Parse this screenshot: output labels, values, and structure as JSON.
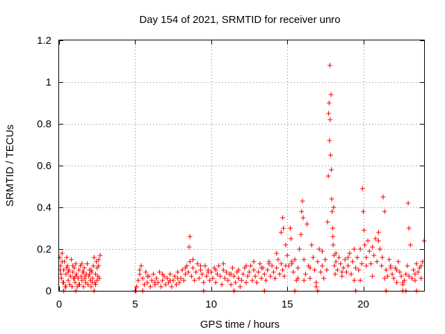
{
  "chart_data": {
    "type": "scatter",
    "title": "Day 154 of 2021, SRMTID for receiver unro",
    "xlabel": "GPS time / hours",
    "ylabel": "SRMTID / TECUs",
    "xlim": [
      0,
      24
    ],
    "ylim": [
      0,
      1.2
    ],
    "xticks": [
      0,
      5,
      10,
      15,
      20
    ],
    "xtick_labels": [
      "0",
      "5",
      "10",
      "15",
      "20"
    ],
    "yticks": [
      0,
      0.2,
      0.4,
      0.6,
      0.8,
      1.0,
      1.2
    ],
    "ytick_labels": [
      "0",
      "0.2",
      "0.4",
      "0.6",
      "0.8",
      "1",
      "1.2"
    ],
    "grid": true,
    "marker": "+",
    "marker_color": "#ff0000",
    "series": [
      {
        "name": "SRMTID",
        "x": [
          0.05,
          0.1,
          0.15,
          0.2,
          0.25,
          0.3,
          0.35,
          0.4,
          0.45,
          0.5,
          0.55,
          0.6,
          0.65,
          0.7,
          0.75,
          0.8,
          0.85,
          0.9,
          0.95,
          1.0,
          1.05,
          1.1,
          1.15,
          1.2,
          1.25,
          1.3,
          1.35,
          1.4,
          1.45,
          1.5,
          1.55,
          1.6,
          1.65,
          1.7,
          1.75,
          1.8,
          1.85,
          1.9,
          1.95,
          2.0,
          2.05,
          2.1,
          2.15,
          2.2,
          2.25,
          2.3,
          2.35,
          2.4,
          2.45,
          2.5,
          2.55,
          2.6,
          2.65,
          2.7,
          0.12,
          0.3,
          0.6,
          0.9,
          1.3,
          1.7,
          2.1,
          2.5,
          0.2,
          0.5,
          1.0,
          1.5,
          2.0,
          2.4,
          0.08,
          0.45,
          1.1,
          1.6,
          2.2,
          2.6,
          5.0,
          5.1,
          5.2,
          5.3,
          5.4,
          5.5,
          5.6,
          5.7,
          5.8,
          5.9,
          6.0,
          6.1,
          6.2,
          6.3,
          6.4,
          6.5,
          6.6,
          6.7,
          6.8,
          6.9,
          7.0,
          7.1,
          7.2,
          7.3,
          7.4,
          7.5,
          7.6,
          7.7,
          7.8,
          7.9,
          8.0,
          8.1,
          8.2,
          8.3,
          8.4,
          8.5,
          8.6,
          8.7,
          8.8,
          8.9,
          9.0,
          9.1,
          9.2,
          9.3,
          9.4,
          9.5,
          9.6,
          9.7,
          9.8,
          9.9,
          10.0,
          10.1,
          10.2,
          10.3,
          10.4,
          10.5,
          10.6,
          10.7,
          10.8,
          10.9,
          11.0,
          11.1,
          11.2,
          11.3,
          11.4,
          11.5,
          11.6,
          11.7,
          11.8,
          11.9,
          12.0,
          12.1,
          12.2,
          12.3,
          12.4,
          12.5,
          12.6,
          12.7,
          12.8,
          12.9,
          13.0,
          13.1,
          13.2,
          13.3,
          13.4,
          13.5,
          13.6,
          13.7,
          13.8,
          13.9,
          14.0,
          14.1,
          14.2,
          14.3,
          14.4,
          14.5,
          14.6,
          14.7,
          14.8,
          14.9,
          5.3,
          5.8,
          6.3,
          6.8,
          7.3,
          7.8,
          8.3,
          8.55,
          8.6,
          8.8,
          9.3,
          9.8,
          10.3,
          10.8,
          11.3,
          11.8,
          12.3,
          12.8,
          13.3,
          13.8,
          14.3,
          14.6,
          14.7,
          14.75,
          14.9,
          15.0,
          15.1,
          15.2,
          15.25,
          15.3,
          15.4,
          15.5,
          15.6,
          15.7,
          15.8,
          15.9,
          15.95,
          16.0,
          16.05,
          16.1,
          16.2,
          16.3,
          16.4,
          16.5,
          16.6,
          16.7,
          16.8,
          16.9,
          17.0,
          17.1,
          17.2,
          17.3,
          17.4,
          17.5,
          17.6,
          17.65,
          17.7,
          17.72,
          17.75,
          17.78,
          17.8,
          17.82,
          17.85,
          17.88,
          17.9,
          17.92,
          17.95,
          17.98,
          18.0,
          18.02,
          18.05,
          18.08,
          18.1,
          18.15,
          18.2,
          18.3,
          18.4,
          18.5,
          18.6,
          18.7,
          18.8,
          18.9,
          19.0,
          19.1,
          19.2,
          19.3,
          19.4,
          19.5,
          19.6,
          19.7,
          19.8,
          19.9,
          19.95,
          20.0,
          20.05,
          20.1,
          20.2,
          20.3,
          20.4,
          20.5,
          20.6,
          20.7,
          20.8,
          20.9,
          21.0,
          21.1,
          21.2,
          21.25,
          21.3,
          21.4,
          21.5,
          21.6,
          21.7,
          21.8,
          21.9,
          22.0,
          22.1,
          22.2,
          22.3,
          22.4,
          22.5,
          22.6,
          22.7,
          22.8,
          22.9,
          22.95,
          23.0,
          23.1,
          23.2,
          23.3,
          23.4,
          23.5,
          23.6,
          23.7,
          23.8,
          23.9,
          24.0,
          15.3,
          15.7,
          16.1,
          16.5,
          16.9,
          17.3,
          18.2,
          18.6,
          19.0,
          19.4,
          19.8,
          20.2,
          20.6,
          21.0,
          21.4,
          21.8,
          22.2,
          22.6,
          23.0,
          23.4,
          23.8,
          0.3,
          1.1,
          2.3,
          5.05,
          5.5,
          9.5,
          11.5,
          13.5,
          15.5,
          17.0,
          19.5,
          21.5,
          22.6,
          22.8,
          23.5
        ],
        "y": [
          0.16,
          0.12,
          0.06,
          0.18,
          0.04,
          0.1,
          0.14,
          0.02,
          0.08,
          0.16,
          0.12,
          0.05,
          0.1,
          0.03,
          0.07,
          0.15,
          0.02,
          0.09,
          0.06,
          0.11,
          0.04,
          0.13,
          0.08,
          0.02,
          0.06,
          0.1,
          0.03,
          0.12,
          0.07,
          0.05,
          0.09,
          0.02,
          0.11,
          0.06,
          0.04,
          0.08,
          0.13,
          0.03,
          0.07,
          0.1,
          0.05,
          0.02,
          0.09,
          0.06,
          0.12,
          0.16,
          0.04,
          0.08,
          0.14,
          0.11,
          0.07,
          0.15,
          0.06,
          0.17,
          0.08,
          0.04,
          0.09,
          0.12,
          0.03,
          0.07,
          0.1,
          0.05,
          0.14,
          0.11,
          0.06,
          0.13,
          0.08,
          0.03,
          0.1,
          0.02,
          0.07,
          0.09,
          0.04,
          0.12,
          0.0,
          0.02,
          0.05,
          0.08,
          0.12,
          0.06,
          0.03,
          0.09,
          0.04,
          0.07,
          0.02,
          0.05,
          0.08,
          0.03,
          0.06,
          0.04,
          0.09,
          0.02,
          0.05,
          0.07,
          0.03,
          0.06,
          0.04,
          0.08,
          0.02,
          0.05,
          0.07,
          0.03,
          0.09,
          0.04,
          0.06,
          0.1,
          0.05,
          0.08,
          0.12,
          0.09,
          0.14,
          0.07,
          0.11,
          0.05,
          0.09,
          0.13,
          0.06,
          0.1,
          0.08,
          0.04,
          0.12,
          0.07,
          0.1,
          0.05,
          0.09,
          0.06,
          0.11,
          0.04,
          0.08,
          0.12,
          0.07,
          0.03,
          0.1,
          0.06,
          0.09,
          0.05,
          0.08,
          0.03,
          0.11,
          0.07,
          0.04,
          0.09,
          0.06,
          0.02,
          0.05,
          0.08,
          0.11,
          0.04,
          0.07,
          0.09,
          0.12,
          0.05,
          0.1,
          0.07,
          0.04,
          0.09,
          0.13,
          0.06,
          0.11,
          0.08,
          0.05,
          0.1,
          0.14,
          0.07,
          0.12,
          0.09,
          0.06,
          0.11,
          0.15,
          0.08,
          0.13,
          0.1,
          0.07,
          0.12,
          0.1,
          0.07,
          0.04,
          0.08,
          0.05,
          0.06,
          0.11,
          0.21,
          0.26,
          0.15,
          0.12,
          0.09,
          0.1,
          0.13,
          0.08,
          0.1,
          0.12,
          0.14,
          0.11,
          0.13,
          0.18,
          0.28,
          0.35,
          0.3,
          0.22,
          0.17,
          0.12,
          0.3,
          0.25,
          0.14,
          0.09,
          0.15,
          0.05,
          0.11,
          0.2,
          0.27,
          0.38,
          0.43,
          0.35,
          0.15,
          0.08,
          0.32,
          0.12,
          0.06,
          0.22,
          0.16,
          0.1,
          0.04,
          0.14,
          0.2,
          0.09,
          0.12,
          0.06,
          0.15,
          0.1,
          0.33,
          0.55,
          0.85,
          0.9,
          0.72,
          1.08,
          0.82,
          0.65,
          0.94,
          0.58,
          0.44,
          0.38,
          0.3,
          0.26,
          0.22,
          0.4,
          0.17,
          0.12,
          0.08,
          0.14,
          0.1,
          0.16,
          0.13,
          0.07,
          0.11,
          0.15,
          0.09,
          0.12,
          0.18,
          0.08,
          0.14,
          0.2,
          0.11,
          0.16,
          0.1,
          0.05,
          0.13,
          0.49,
          0.38,
          0.29,
          0.22,
          0.16,
          0.24,
          0.19,
          0.13,
          0.21,
          0.17,
          0.25,
          0.14,
          0.28,
          0.2,
          0.12,
          0.16,
          0.45,
          0.38,
          0.1,
          0.07,
          0.15,
          0.12,
          0.08,
          0.06,
          0.11,
          0.04,
          0.14,
          0.09,
          0.07,
          0.03,
          0.05,
          0.08,
          0.12,
          0.42,
          0.3,
          0.22,
          0.06,
          0.1,
          0.08,
          0.13,
          0.09,
          0.11,
          0.06,
          0.14,
          0.24,
          0.13,
          0.06,
          0.05,
          0.11,
          0.02,
          0.19,
          0.18,
          0.09,
          0.16,
          0.05,
          0.2,
          0.12,
          0.07,
          0.24,
          0.06,
          0.11,
          0.1,
          0.04,
          0.07,
          0.05,
          0.12,
          0.0,
          0.0,
          0.0,
          0.0,
          0.0,
          0.0,
          0.0,
          0.0,
          0.0,
          0.0,
          0.0,
          0.0,
          0.0,
          0.0,
          0.0
        ]
      }
    ]
  }
}
